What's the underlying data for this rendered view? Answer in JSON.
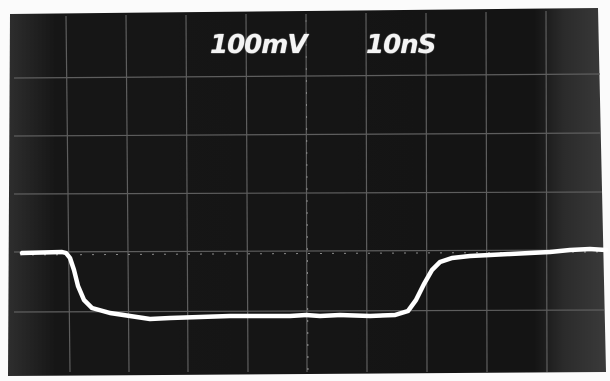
{
  "scope": {
    "volts_per_div": "100mV",
    "time_per_div": "10nS"
  },
  "colors": {
    "screen": "#141414",
    "screen_edge": "#2c2c2c",
    "graticule": "#6a6a6a",
    "trace": "#ffffff",
    "border": "#fbfbfb"
  }
}
